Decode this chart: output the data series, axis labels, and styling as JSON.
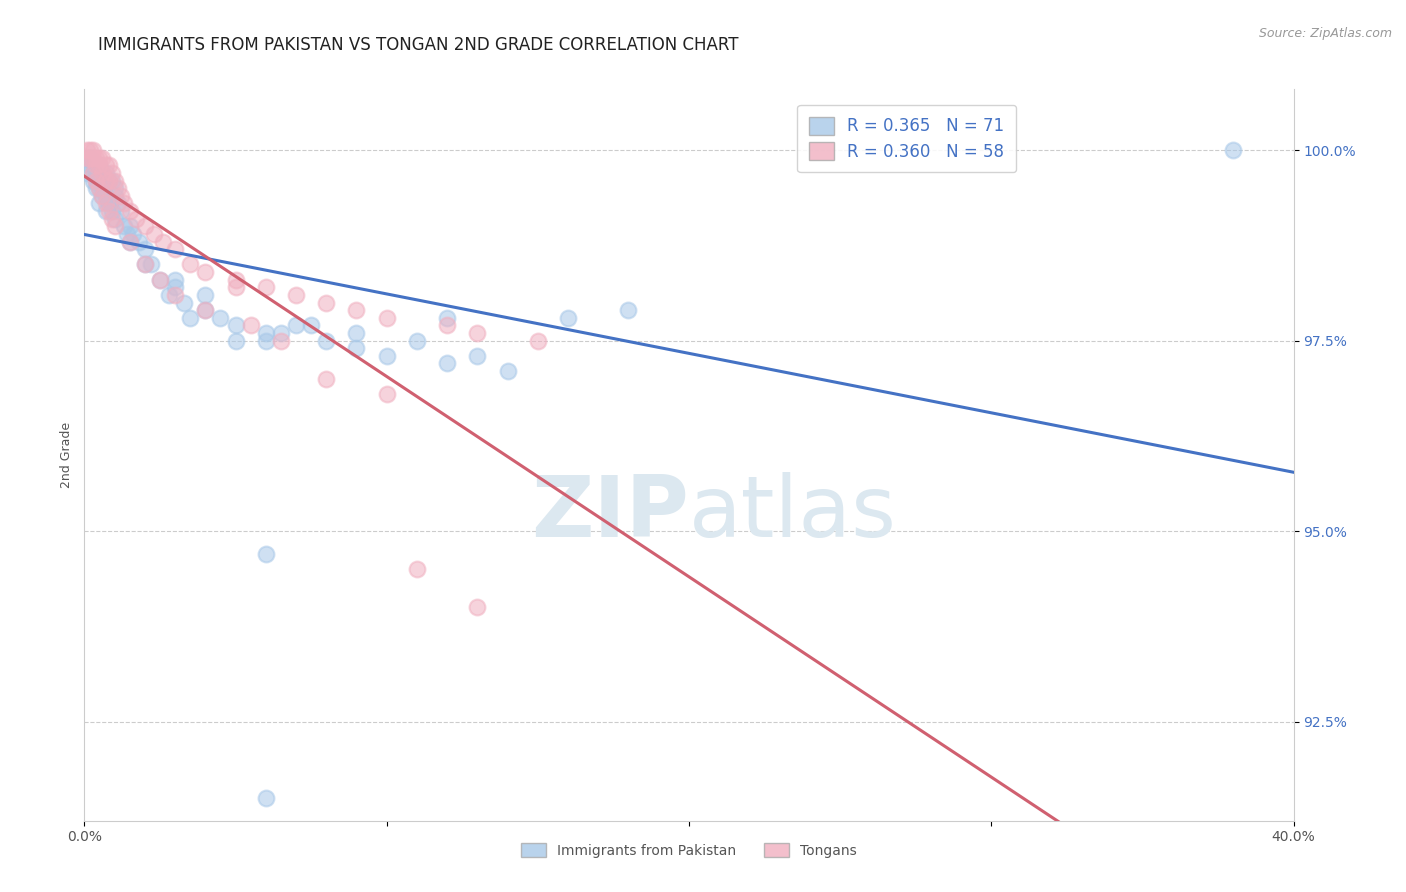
{
  "title": "IMMIGRANTS FROM PAKISTAN VS TONGAN 2ND GRADE CORRELATION CHART",
  "source_text": "Source: ZipAtlas.com",
  "ylabel": "2nd Grade",
  "x_min": 0.0,
  "x_max": 0.4,
  "y_min": 0.912,
  "y_max": 1.008,
  "blue_color": "#a8c8e8",
  "pink_color": "#f0b0c0",
  "blue_line_color": "#4472c4",
  "pink_line_color": "#d06070",
  "legend_blue_label": "R = 0.365   N = 71",
  "legend_pink_label": "R = 0.360   N = 58",
  "legend_series_blue": "Immigrants from Pakistan",
  "legend_series_pink": "Tongans",
  "legend_text_color": "#4472c4",
  "y_tick_color": "#4472c4",
  "background_color": "#ffffff",
  "grid_color": "#cccccc",
  "title_fontsize": 12,
  "axis_label_fontsize": 9,
  "tick_fontsize": 10,
  "legend_fontsize": 12,
  "blue_scatter_x": [
    0.001,
    0.001,
    0.002,
    0.002,
    0.003,
    0.003,
    0.003,
    0.004,
    0.004,
    0.004,
    0.005,
    0.005,
    0.005,
    0.006,
    0.006,
    0.006,
    0.007,
    0.007,
    0.008,
    0.008,
    0.009,
    0.009,
    0.01,
    0.01,
    0.01,
    0.011,
    0.012,
    0.013,
    0.014,
    0.015,
    0.016,
    0.018,
    0.02,
    0.022,
    0.025,
    0.028,
    0.03,
    0.033,
    0.035,
    0.04,
    0.045,
    0.05,
    0.06,
    0.07,
    0.08,
    0.09,
    0.1,
    0.12,
    0.14,
    0.16,
    0.18,
    0.05,
    0.065,
    0.075,
    0.11,
    0.13,
    0.02,
    0.03,
    0.04,
    0.015,
    0.008,
    0.006,
    0.007,
    0.005,
    0.004,
    0.12,
    0.09,
    0.06,
    0.38,
    0.06,
    0.06
  ],
  "blue_scatter_y": [
    0.999,
    0.997,
    0.999,
    0.998,
    0.998,
    0.997,
    0.996,
    0.998,
    0.997,
    0.996,
    0.998,
    0.997,
    0.995,
    0.997,
    0.996,
    0.995,
    0.997,
    0.994,
    0.996,
    0.993,
    0.996,
    0.992,
    0.995,
    0.994,
    0.991,
    0.993,
    0.992,
    0.99,
    0.989,
    0.99,
    0.989,
    0.988,
    0.987,
    0.985,
    0.983,
    0.981,
    0.982,
    0.98,
    0.978,
    0.979,
    0.978,
    0.977,
    0.976,
    0.977,
    0.975,
    0.974,
    0.973,
    0.972,
    0.971,
    0.978,
    0.979,
    0.975,
    0.976,
    0.977,
    0.975,
    0.973,
    0.985,
    0.983,
    0.981,
    0.988,
    0.993,
    0.994,
    0.992,
    0.993,
    0.995,
    0.978,
    0.976,
    0.975,
    1.0,
    0.947,
    0.915
  ],
  "pink_scatter_x": [
    0.001,
    0.001,
    0.002,
    0.002,
    0.003,
    0.003,
    0.004,
    0.004,
    0.005,
    0.005,
    0.006,
    0.006,
    0.007,
    0.007,
    0.008,
    0.008,
    0.009,
    0.01,
    0.011,
    0.012,
    0.013,
    0.015,
    0.017,
    0.02,
    0.023,
    0.026,
    0.03,
    0.035,
    0.04,
    0.05,
    0.06,
    0.07,
    0.08,
    0.09,
    0.1,
    0.12,
    0.13,
    0.15,
    0.05,
    0.003,
    0.004,
    0.005,
    0.006,
    0.007,
    0.008,
    0.009,
    0.01,
    0.015,
    0.02,
    0.025,
    0.03,
    0.04,
    0.055,
    0.065,
    0.08,
    0.1,
    0.11,
    0.13
  ],
  "pink_scatter_y": [
    1.0,
    0.999,
    1.0,
    0.999,
    1.0,
    0.999,
    0.999,
    0.998,
    0.999,
    0.998,
    0.999,
    0.997,
    0.998,
    0.996,
    0.998,
    0.996,
    0.997,
    0.996,
    0.995,
    0.994,
    0.993,
    0.992,
    0.991,
    0.99,
    0.989,
    0.988,
    0.987,
    0.985,
    0.984,
    0.983,
    0.982,
    0.981,
    0.98,
    0.979,
    0.978,
    0.977,
    0.976,
    0.975,
    0.982,
    0.997,
    0.996,
    0.995,
    0.994,
    0.993,
    0.992,
    0.991,
    0.99,
    0.988,
    0.985,
    0.983,
    0.981,
    0.979,
    0.977,
    0.975,
    0.97,
    0.968,
    0.945,
    0.94
  ]
}
